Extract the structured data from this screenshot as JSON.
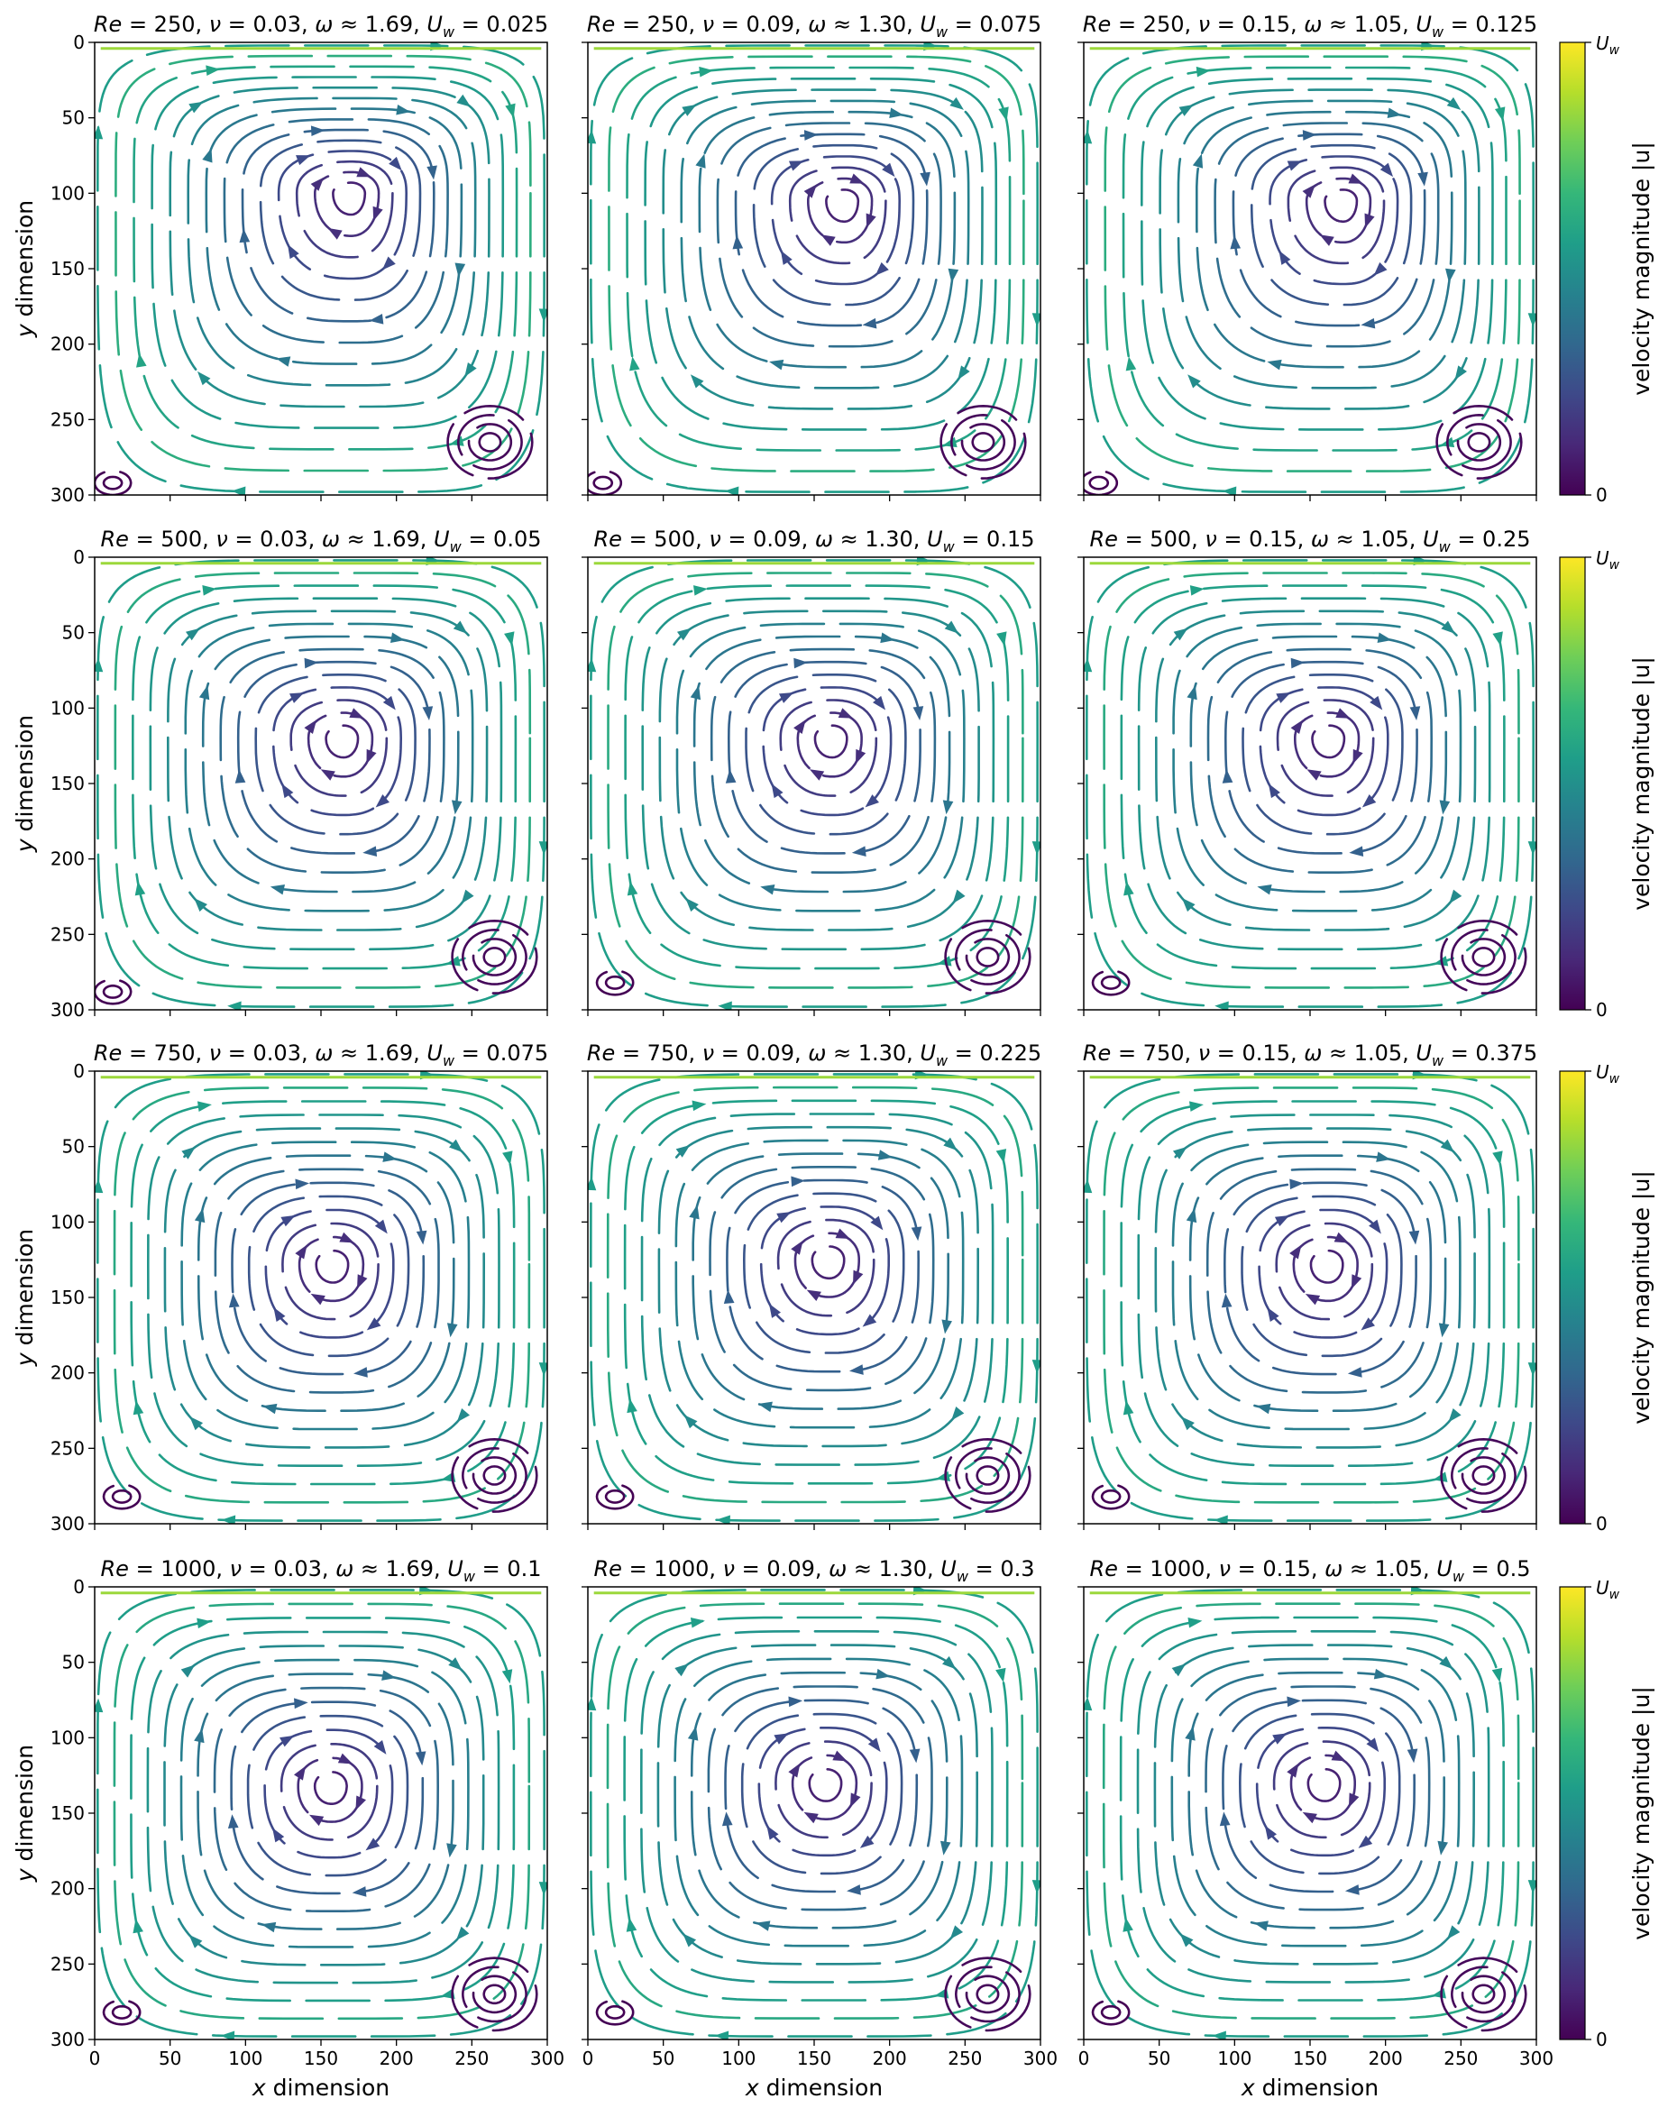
{
  "chart_data": {
    "type": "streamplot",
    "description_layout": "4 rows x 3 columns of lid-driven cavity streamline panels, each row sharing a velocity-magnitude colorbar",
    "xlabel": "x dimension",
    "ylabel": "y dimension",
    "xlim": [
      0,
      300
    ],
    "ylim": [
      300,
      0
    ],
    "x_ticks": [
      "0",
      "50",
      "100",
      "150",
      "200",
      "250",
      "300"
    ],
    "y_ticks": [
      "0",
      "50",
      "100",
      "150",
      "200",
      "250",
      "300"
    ],
    "colorbar": {
      "label": "velocity magnitude |u|",
      "top_label": "U_w",
      "bottom_label": "0",
      "colormap": "viridis",
      "colors": [
        "#440154",
        "#482878",
        "#3e4989",
        "#31688e",
        "#26828e",
        "#1f9e89",
        "#35b779",
        "#6ece58",
        "#b5de2b",
        "#fde725"
      ]
    },
    "panels": [
      {
        "Re": "250",
        "nu": "0.03",
        "omega": "1.69",
        "Uw": "0.025",
        "vortex_center": [
          170,
          100
        ],
        "br_eddy": [
          262,
          265
        ],
        "bl_eddy": [
          12,
          292
        ]
      },
      {
        "Re": "250",
        "nu": "0.09",
        "omega": "1.30",
        "Uw": "0.075",
        "vortex_center": [
          170,
          105
        ],
        "br_eddy": [
          262,
          265
        ],
        "bl_eddy": [
          10,
          292
        ]
      },
      {
        "Re": "250",
        "nu": "0.15",
        "omega": "1.05",
        "Uw": "0.125",
        "vortex_center": [
          172,
          105
        ],
        "br_eddy": [
          262,
          265
        ],
        "bl_eddy": [
          10,
          292
        ]
      },
      {
        "Re": "500",
        "nu": "0.03",
        "omega": "1.69",
        "Uw": "0.05",
        "vortex_center": [
          165,
          120
        ],
        "br_eddy": [
          265,
          265
        ],
        "bl_eddy": [
          12,
          288
        ]
      },
      {
        "Re": "500",
        "nu": "0.09",
        "omega": "1.30",
        "Uw": "0.15",
        "vortex_center": [
          162,
          120
        ],
        "br_eddy": [
          265,
          265
        ],
        "bl_eddy": [
          18,
          282
        ]
      },
      {
        "Re": "500",
        "nu": "0.15",
        "omega": "1.05",
        "Uw": "0.25",
        "vortex_center": [
          163,
          120
        ],
        "br_eddy": [
          265,
          265
        ],
        "bl_eddy": [
          18,
          282
        ]
      },
      {
        "Re": "750",
        "nu": "0.03",
        "omega": "1.69",
        "Uw": "0.075",
        "vortex_center": [
          158,
          128
        ],
        "br_eddy": [
          265,
          268
        ],
        "bl_eddy": [
          18,
          282
        ]
      },
      {
        "Re": "750",
        "nu": "0.09",
        "omega": "1.30",
        "Uw": "0.225",
        "vortex_center": [
          160,
          125
        ],
        "br_eddy": [
          265,
          268
        ],
        "bl_eddy": [
          18,
          282
        ]
      },
      {
        "Re": "750",
        "nu": "0.15",
        "omega": "1.05",
        "Uw": "0.375",
        "vortex_center": [
          162,
          128
        ],
        "br_eddy": [
          265,
          268
        ],
        "bl_eddy": [
          18,
          282
        ]
      },
      {
        "Re": "1000",
        "nu": "0.03",
        "omega": "1.69",
        "Uw": "0.1",
        "vortex_center": [
          157,
          132
        ],
        "br_eddy": [
          265,
          270
        ],
        "bl_eddy": [
          18,
          282
        ]
      },
      {
        "Re": "1000",
        "nu": "0.09",
        "omega": "1.30",
        "Uw": "0.3",
        "vortex_center": [
          158,
          130
        ],
        "br_eddy": [
          265,
          270
        ],
        "bl_eddy": [
          18,
          282
        ]
      },
      {
        "Re": "1000",
        "nu": "0.15",
        "omega": "1.05",
        "Uw": "0.5",
        "vortex_center": [
          160,
          130
        ],
        "br_eddy": [
          265,
          270
        ],
        "bl_eddy": [
          18,
          282
        ]
      }
    ]
  }
}
